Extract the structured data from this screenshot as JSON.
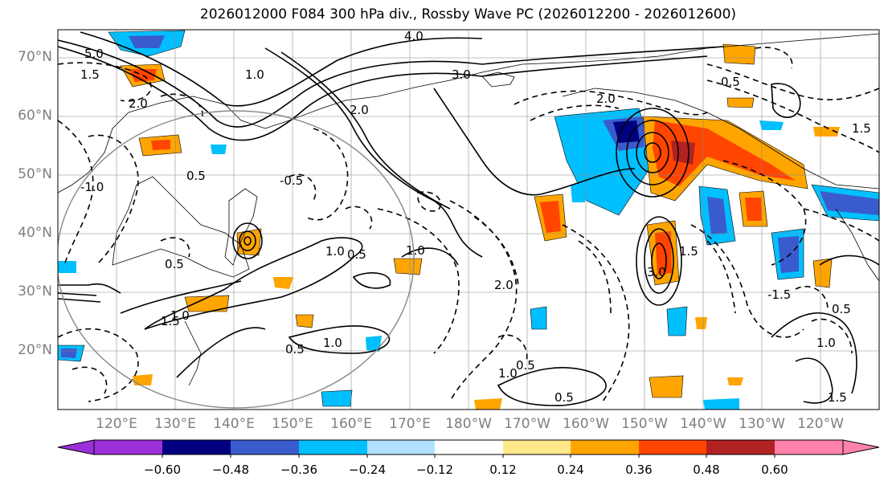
{
  "title": "2026012000 F084 300 hPa div., Rossby Wave PC (2026012200 - 2026012600)",
  "map": {
    "lat_labels": [
      "70°N",
      "60°N",
      "50°N",
      "40°N",
      "30°N",
      "20°N"
    ],
    "lon_labels": [
      "120°E",
      "130°E",
      "140°E",
      "150°E",
      "160°E",
      "170°E",
      "180°W",
      "170°W",
      "160°W",
      "150°W",
      "140°W",
      "130°W",
      "120°W"
    ],
    "contour_labels": [
      "5.0",
      "2.0",
      "1.5",
      "1.0",
      "0.5",
      "-0.5",
      "-1.0",
      "2.0",
      "0.5",
      "1.0",
      "1.0",
      "1.5",
      "0.5",
      "2.0",
      "0.5",
      "1.0",
      "0.5",
      "3.0",
      "2.0",
      "1.0",
      "-1.5",
      "1.5",
      "1.0",
      "0.5",
      "4.0",
      "3.0",
      "1.5",
      "0.5",
      "0.5",
      "1.0",
      "1.5"
    ]
  },
  "colorbar": {
    "ticks": [
      "−0.60",
      "−0.48",
      "−0.36",
      "−0.24",
      "−0.12",
      "0.12",
      "0.24",
      "0.36",
      "0.48",
      "0.60"
    ],
    "colors": [
      "#9b30d9",
      "#000080",
      "#3a5bcd",
      "#00bfff",
      "#b0e2ff",
      "#ffffff",
      "#ffe88a",
      "#ffa500",
      "#ff4500",
      "#b22222",
      "#ff82ab",
      "#ff82ab"
    ]
  }
}
